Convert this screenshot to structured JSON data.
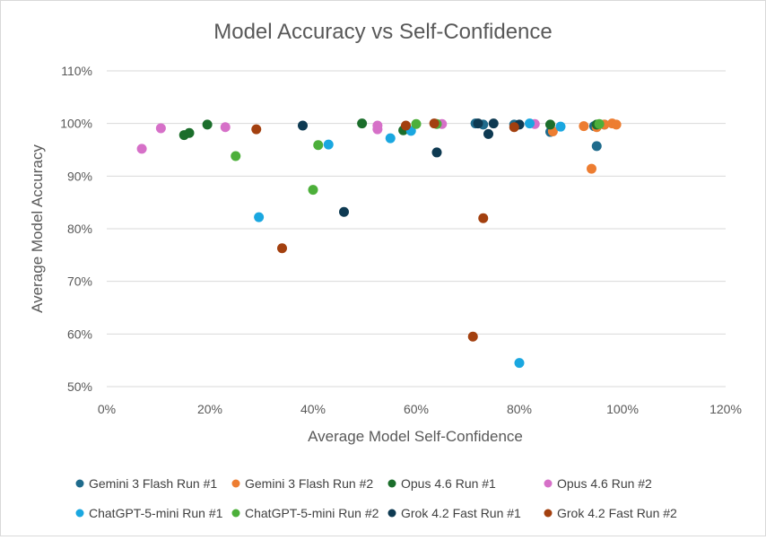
{
  "chart_data": {
    "type": "scatter",
    "title": "Model Accuracy vs Self-Confidence",
    "xlabel": "Average Model Self-Confidence",
    "ylabel": "Average Model Accuracy",
    "xlim": [
      0,
      120
    ],
    "ylim": [
      50,
      110
    ],
    "x_ticks": [
      "0%",
      "20%",
      "40%",
      "60%",
      "80%",
      "100%",
      "120%"
    ],
    "y_ticks": [
      "50%",
      "60%",
      "70%",
      "80%",
      "90%",
      "100%",
      "110%"
    ],
    "grid": true,
    "legend_position": "bottom",
    "series": [
      {
        "name": "Gemini 3 Flash Run #1",
        "color": "#1f6b8c",
        "points": [
          [
            71.5,
            100
          ],
          [
            73,
            99.8
          ],
          [
            79,
            99.8
          ],
          [
            86,
            98.4
          ],
          [
            94.5,
            99.5
          ],
          [
            95,
            95.7
          ],
          [
            96.5,
            99.8
          ]
        ]
      },
      {
        "name": "Gemini 3 Flash Run #2",
        "color": "#ed7d31",
        "points": [
          [
            86.5,
            98.5
          ],
          [
            92.5,
            99.5
          ],
          [
            94,
            91.4
          ],
          [
            95,
            99.3
          ],
          [
            96.5,
            99.8
          ],
          [
            98,
            100
          ],
          [
            98.8,
            99.8
          ]
        ]
      },
      {
        "name": "Opus 4.6 Run #1",
        "color": "#1b6e2b",
        "points": [
          [
            15,
            97.8
          ],
          [
            16,
            98.2
          ],
          [
            19.5,
            99.8
          ],
          [
            49.5,
            100
          ],
          [
            57.5,
            98.7
          ],
          [
            86,
            99.8
          ],
          [
            95,
            99.8
          ]
        ]
      },
      {
        "name": "Opus 4.6 Run #2",
        "color": "#d670c8",
        "points": [
          [
            6.8,
            95.2
          ],
          [
            10.5,
            99.1
          ],
          [
            23,
            99.3
          ],
          [
            52.5,
            99.6
          ],
          [
            52.5,
            98.9
          ],
          [
            65,
            99.9
          ],
          [
            83,
            99.9
          ]
        ]
      },
      {
        "name": "ChatGPT-5-mini Run #1",
        "color": "#1aa7e0",
        "points": [
          [
            29.5,
            82.2
          ],
          [
            43,
            96
          ],
          [
            55,
            97.2
          ],
          [
            59,
            98.6
          ],
          [
            80,
            54.5
          ],
          [
            82,
            100
          ],
          [
            88,
            99.4
          ]
        ]
      },
      {
        "name": "ChatGPT-5-mini Run #2",
        "color": "#4caf3a",
        "points": [
          [
            25,
            93.8
          ],
          [
            40,
            87.4
          ],
          [
            41,
            95.9
          ],
          [
            60,
            99.9
          ],
          [
            64,
            99.9
          ],
          [
            95.5,
            99.9
          ]
        ]
      },
      {
        "name": "Grok 4.2 Fast  Run #1",
        "color": "#0e3a52",
        "points": [
          [
            38,
            99.6
          ],
          [
            46,
            83.2
          ],
          [
            64,
            94.5
          ],
          [
            72,
            100
          ],
          [
            74,
            98
          ],
          [
            75,
            100
          ],
          [
            80,
            99.8
          ]
        ]
      },
      {
        "name": "Grok 4.2 Fast Run #2",
        "color": "#a3400f",
        "points": [
          [
            29,
            98.9
          ],
          [
            34,
            76.3
          ],
          [
            58,
            99.6
          ],
          [
            63.5,
            100
          ],
          [
            71,
            59.5
          ],
          [
            73,
            82
          ],
          [
            79,
            99.3
          ]
        ]
      }
    ]
  }
}
